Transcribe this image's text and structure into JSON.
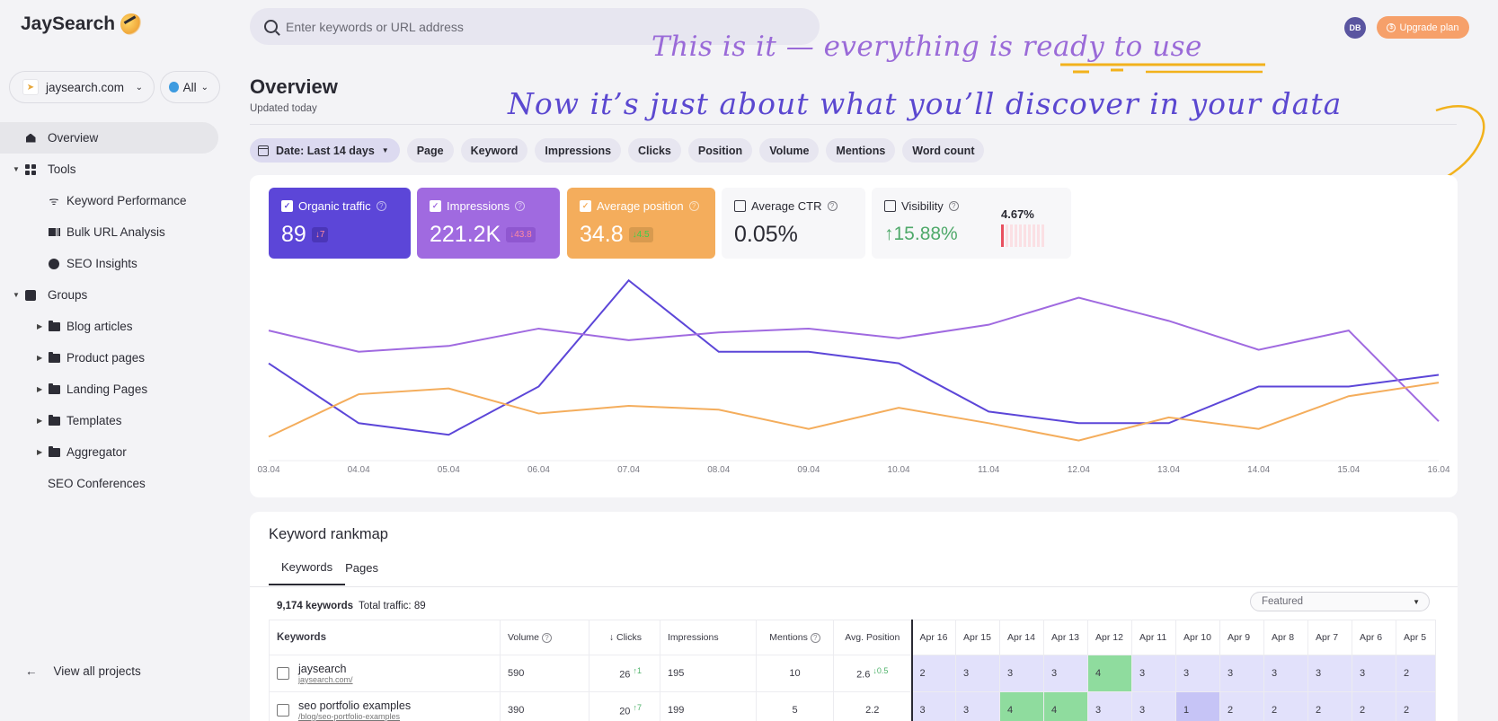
{
  "app": {
    "name": "JaySearch"
  },
  "sidebar": {
    "project": "jaysearch.com",
    "region": "All",
    "items": [
      {
        "label": "Overview",
        "icon": "house-icon",
        "active": true
      },
      {
        "label": "Tools",
        "icon": "grid-icon",
        "expanded": true
      },
      {
        "label": "Keyword Performance",
        "icon": "signal-icon"
      },
      {
        "label": "Bulk URL Analysis",
        "icon": "bars-icon"
      },
      {
        "label": "SEO Insights",
        "icon": "insight-icon"
      },
      {
        "label": "Groups",
        "icon": "chart-box-icon",
        "expanded": true
      },
      {
        "label": "Blog articles",
        "icon": "folder-icon"
      },
      {
        "label": "Product pages",
        "icon": "folder-icon"
      },
      {
        "label": "Landing Pages",
        "icon": "folder-icon"
      },
      {
        "label": "Templates",
        "icon": "folder-icon"
      },
      {
        "label": "Aggregator",
        "icon": "folder-icon"
      },
      {
        "label": "SEO Conferences"
      }
    ],
    "view_all": "View all projects"
  },
  "topbar": {
    "search_placeholder": "Enter keywords or URL address",
    "avatar": "DB",
    "upgrade_label": "Upgrade plan"
  },
  "header": {
    "title": "Overview",
    "updated": "Updated today"
  },
  "annotation": {
    "line1": "This is it — everything is ready to use",
    "line2": "Now it’s just about what you’ll discover in your data"
  },
  "filters": {
    "date": "Date: Last 14 days",
    "chips": [
      "Page",
      "Keyword",
      "Impressions",
      "Clicks",
      "Position",
      "Volume",
      "Mentions",
      "Word count"
    ]
  },
  "metrics": [
    {
      "label": "Organic traffic",
      "value": "89",
      "delta": "↓7",
      "checked": true,
      "color": "#5c46d8"
    },
    {
      "label": "Impressions",
      "value": "221.2K",
      "delta": "↓43.8",
      "checked": true,
      "color": "#a06ae0"
    },
    {
      "label": "Average position",
      "value": "34.8",
      "delta": "↓4.5",
      "checked": true,
      "color": "#f4ad5c"
    },
    {
      "label": "Average CTR",
      "value": "0.05%",
      "checked": false
    },
    {
      "label": "Visibility",
      "value": "↑15.88%",
      "current": "4.67%",
      "checked": false
    }
  ],
  "chart_data": {
    "type": "line",
    "title": "",
    "xlabel": "",
    "ylabel": "",
    "grid": false,
    "categories": [
      "03.04",
      "04.04",
      "05.04",
      "06.04",
      "07.04",
      "08.04",
      "09.04",
      "10.04",
      "11.04",
      "12.04",
      "13.04",
      "14.04",
      "15.04",
      "16.04"
    ],
    "series": [
      {
        "name": "Organic traffic",
        "color": "#5c46d8",
        "values": [
          0.49,
          0.18,
          0.12,
          0.37,
          0.92,
          0.55,
          0.55,
          0.49,
          0.24,
          0.18,
          0.18,
          0.37,
          0.37,
          0.43
        ]
      },
      {
        "name": "Impressions",
        "color": "#a06ae0",
        "values": [
          0.66,
          0.55,
          0.58,
          0.67,
          0.61,
          0.65,
          0.67,
          0.62,
          0.69,
          0.83,
          0.71,
          0.56,
          0.66,
          0.19
        ]
      },
      {
        "name": "Average position",
        "color": "#f4ad5c",
        "values": [
          0.11,
          0.33,
          0.36,
          0.23,
          0.27,
          0.25,
          0.15,
          0.26,
          0.18,
          0.09,
          0.21,
          0.15,
          0.32,
          0.39
        ]
      }
    ],
    "ylim": [
      0,
      1
    ]
  },
  "rankmap": {
    "title": "Keyword rankmap",
    "tabs": [
      "Keywords",
      "Pages"
    ],
    "keyword_count": "9,174 keywords",
    "total_traffic": "Total traffic: 89",
    "sort": "Featured",
    "columns": [
      "Keywords",
      "Volume",
      "↓ Clicks",
      "Impressions",
      "Mentions",
      "Avg. Position"
    ],
    "dates": [
      "Apr 16",
      "Apr 15",
      "Apr 14",
      "Apr 13",
      "Apr 12",
      "Apr 11",
      "Apr 10",
      "Apr 9",
      "Apr 8",
      "Apr 7",
      "Apr 6",
      "Apr 5"
    ],
    "rows": [
      {
        "keyword": "jaysearch",
        "url": "jaysearch.com/",
        "volume": "590",
        "clicks": "26",
        "clicks_delta": "↑1",
        "impressions": "195",
        "mentions": "10",
        "position": "2.6",
        "position_delta": "↓0.5",
        "ranks": [
          "2",
          "3",
          "3",
          "3",
          "4",
          "3",
          "3",
          "3",
          "3",
          "3",
          "3",
          "2"
        ],
        "states": [
          "",
          "",
          "",
          "",
          "g",
          "",
          "",
          "",
          "",
          "",
          "",
          ""
        ]
      },
      {
        "keyword": "seo portfolio examples",
        "url": "/blog/seo-portfolio-examples",
        "volume": "390",
        "clicks": "20",
        "clicks_delta": "↑7",
        "impressions": "199",
        "mentions": "5",
        "position": "2.2",
        "position_delta": "",
        "ranks": [
          "3",
          "3",
          "4",
          "4",
          "3",
          "3",
          "1",
          "2",
          "2",
          "2",
          "2",
          "2"
        ],
        "states": [
          "",
          "",
          "g",
          "g",
          "",
          "",
          "b",
          "",
          "",
          "",
          "",
          ""
        ]
      }
    ]
  }
}
